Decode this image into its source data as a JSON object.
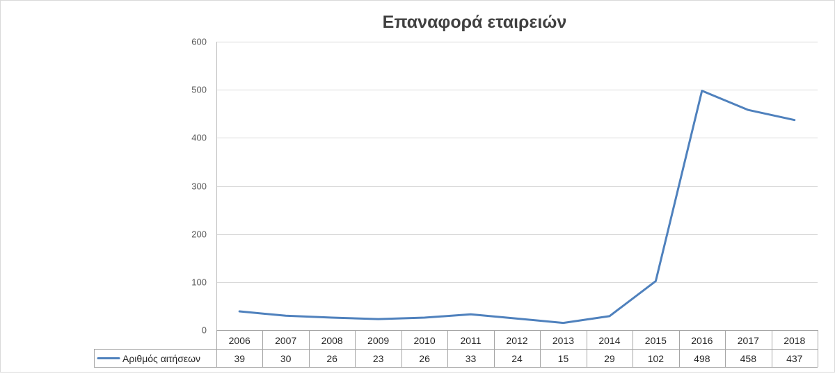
{
  "chart_data": {
    "type": "line",
    "title": "Επαναφορά εταιρειών",
    "xlabel": "",
    "ylabel": "",
    "ylim": [
      0,
      600
    ],
    "yticks": [
      0,
      100,
      200,
      300,
      400,
      500,
      600
    ],
    "grid": true,
    "legend": "in data table",
    "categories": [
      "2006",
      "2007",
      "2008",
      "2009",
      "2010",
      "2011",
      "2012",
      "2013",
      "2014",
      "2015",
      "2016",
      "2017",
      "2018"
    ],
    "series": [
      {
        "name": "Αριθμός αιτήσεων",
        "color": "#4f81bd",
        "values": [
          39,
          30,
          26,
          23,
          26,
          33,
          24,
          15,
          29,
          102,
          498,
          458,
          437
        ]
      }
    ]
  }
}
